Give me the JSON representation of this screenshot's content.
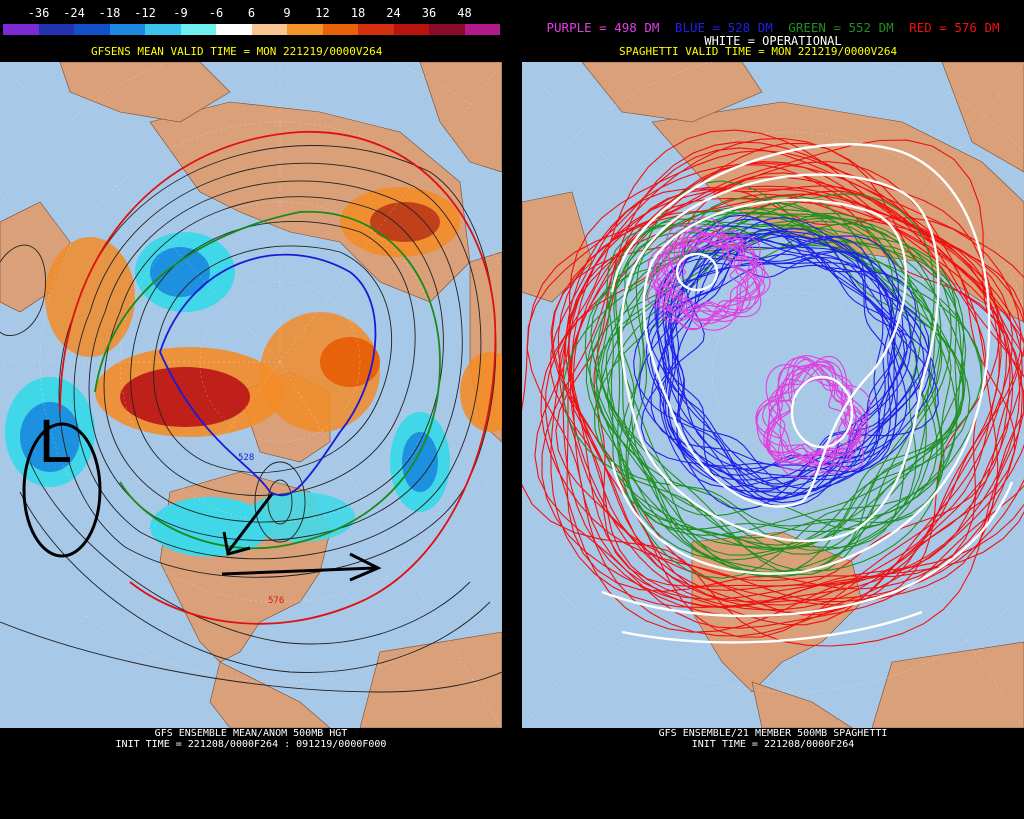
{
  "left": {
    "legend": {
      "labels": [
        "-36",
        "-24",
        "-18",
        "-12",
        "-9",
        "-6",
        "6",
        "9",
        "12",
        "18",
        "24",
        "36",
        "48"
      ],
      "colors": [
        "#7b2bd6",
        "#2233b0",
        "#1150c8",
        "#1e88e0",
        "#3cc4f0",
        "#6ff0f0",
        "#ffffff",
        "#f7c690",
        "#f2942a",
        "#e8620c",
        "#d43010",
        "#b8140e",
        "#8a0a2a",
        "#b01a8a"
      ]
    },
    "subtitle": "GFSENS MEAN VALID TIME = MON 221219/0000V264",
    "footer": {
      "line1": "GFS ENSEMBLE MEAN/ANOM 500MB HGT",
      "line2": "INIT TIME = 221208/0000F264 : 091219/0000F000"
    },
    "annotations": {
      "low_label": "L",
      "contour_labels": [
        "528",
        "576"
      ]
    },
    "colors": {
      "ocean": "#a8c8e8",
      "land": "#d9a07a",
      "positive_anomaly": "#f28c28",
      "strong_positive": "#c0201a",
      "negative_anomaly": "#1e90e0",
      "light_negative": "#40d8e8"
    }
  },
  "right": {
    "title": {
      "purple": "PURPLE = 498 DM",
      "blue": "BLUE = 528 DM",
      "green": "GREEN = 552 DM",
      "red": "RED = 576 DM"
    },
    "operational": "WHITE = OPERATIONAL",
    "subtitle": "SPAGHETTI VALID TIME = MON 221219/0000V264",
    "footer": {
      "line1": "GFS ENSEMBLE/21 MEMBER 500MB SPAGHETTI",
      "line2": "INIT TIME = 221208/0000F264"
    },
    "colors": {
      "purple": "#e040e0",
      "blue": "#2020e8",
      "green": "#209020",
      "red": "#f01010",
      "white": "#ffffff"
    }
  }
}
